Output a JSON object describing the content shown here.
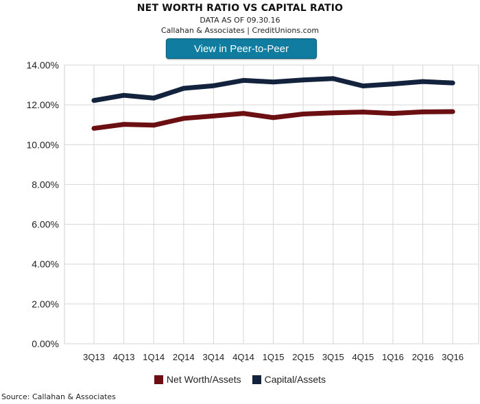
{
  "header": {
    "title": "NET WORTH RATIO VS CAPITAL RATIO",
    "subtitle": "DATA AS OF 09.30.16",
    "byline": "Callahan & Associates | CreditUnions.com",
    "cta_label": "View in Peer-to-Peer"
  },
  "footer": {
    "source": "Source: Callahan & Associates"
  },
  "chart_data": {
    "type": "line",
    "categories": [
      "3Q13",
      "4Q13",
      "1Q14",
      "2Q14",
      "3Q14",
      "4Q14",
      "1Q15",
      "2Q15",
      "3Q15",
      "4Q15",
      "1Q16",
      "2Q16",
      "3Q16"
    ],
    "ylim": [
      0,
      14
    ],
    "yticks": [
      0,
      2,
      4,
      6,
      8,
      10,
      12,
      14
    ],
    "ytick_labels": [
      "0.00%",
      "2.00%",
      "4.00%",
      "6.00%",
      "8.00%",
      "10.00%",
      "12.00%",
      "14.00%"
    ],
    "grid": true,
    "legend_position": "bottom",
    "series": [
      {
        "name": "Net Worth/Assets",
        "color": "#6b0f12",
        "values": [
          10.82,
          11.02,
          10.98,
          11.32,
          11.44,
          11.57,
          11.36,
          11.54,
          11.6,
          11.64,
          11.57,
          11.65,
          11.66
        ]
      },
      {
        "name": "Capital/Assets",
        "color": "#13233d",
        "values": [
          12.22,
          12.48,
          12.34,
          12.83,
          12.96,
          13.23,
          13.15,
          13.25,
          13.32,
          12.95,
          13.05,
          13.17,
          13.1
        ]
      }
    ]
  }
}
